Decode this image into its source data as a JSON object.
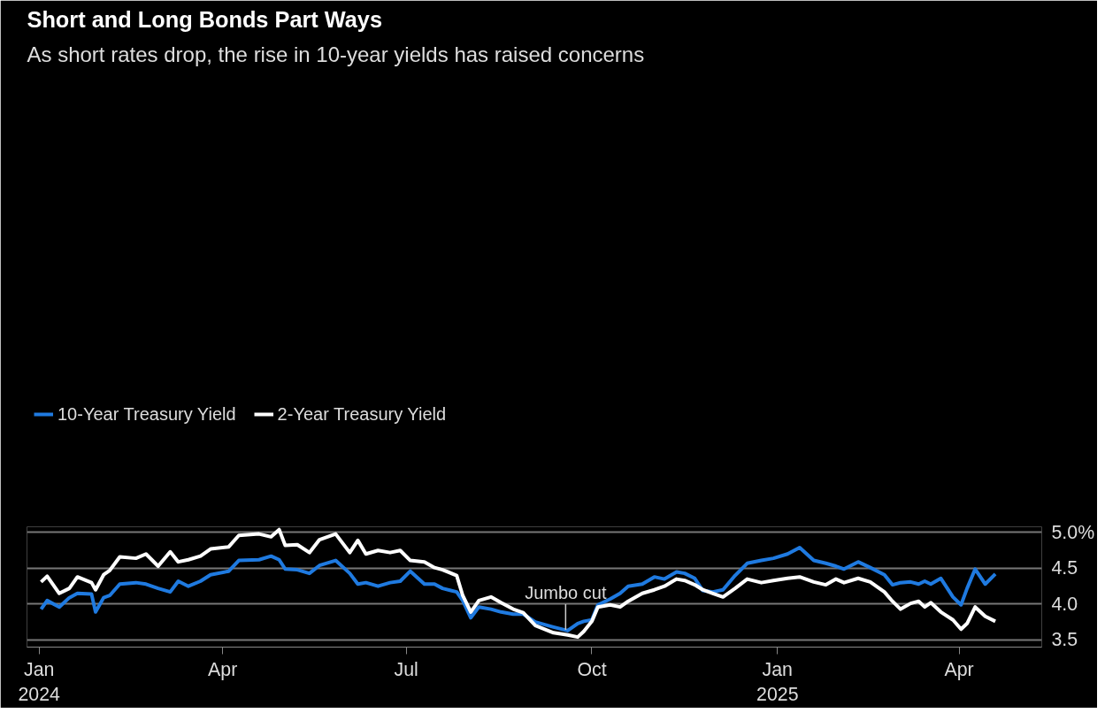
{
  "chart_data": {
    "type": "line",
    "title": "Short and Long Bonds Part Ways",
    "subtitle": "As short rates drop, the rise in 10-year yields has raised concerns",
    "x": [
      "2024-01-02",
      "2024-01-05",
      "2024-01-11",
      "2024-01-16",
      "2024-01-20",
      "2024-01-27",
      "2024-01-29",
      "2024-02-02",
      "2024-02-05",
      "2024-02-10",
      "2024-02-18",
      "2024-02-23",
      "2024-02-29",
      "2024-03-06",
      "2024-03-10",
      "2024-03-15",
      "2024-03-21",
      "2024-03-26",
      "2024-04-04",
      "2024-04-09",
      "2024-04-19",
      "2024-04-25",
      "2024-04-29",
      "2024-05-02",
      "2024-05-08",
      "2024-05-14",
      "2024-05-19",
      "2024-05-27",
      "2024-06-03",
      "2024-06-07",
      "2024-06-11",
      "2024-06-17",
      "2024-06-23",
      "2024-06-28",
      "2024-07-03",
      "2024-07-10",
      "2024-07-15",
      "2024-07-19",
      "2024-07-26",
      "2024-07-29",
      "2024-08-02",
      "2024-08-06",
      "2024-08-12",
      "2024-08-17",
      "2024-08-23",
      "2024-08-28",
      "2024-09-03",
      "2024-09-12",
      "2024-09-19",
      "2024-09-24",
      "2024-09-27",
      "2024-10-01",
      "2024-10-04",
      "2024-10-10",
      "2024-10-15",
      "2024-10-19",
      "2024-10-26",
      "2024-11-01",
      "2024-11-06",
      "2024-11-12",
      "2024-11-16",
      "2024-11-21",
      "2024-11-25",
      "2024-11-30",
      "2024-12-05",
      "2024-12-11",
      "2024-12-17",
      "2024-12-24",
      "2024-12-30",
      "2025-01-06",
      "2025-01-12",
      "2025-01-19",
      "2025-01-25",
      "2025-01-30",
      "2025-02-03",
      "2025-02-10",
      "2025-02-16",
      "2025-02-23",
      "2025-02-27",
      "2025-03-03",
      "2025-03-08",
      "2025-03-12",
      "2025-03-15",
      "2025-03-18",
      "2025-03-23",
      "2025-03-29",
      "2025-04-02",
      "2025-04-05",
      "2025-04-09",
      "2025-04-14",
      "2025-04-19"
    ],
    "series": [
      {
        "name": "10-Year Treasury Yield",
        "color": "#1f7ae0",
        "values": [
          3.93,
          4.05,
          3.96,
          4.09,
          4.15,
          4.14,
          3.89,
          4.09,
          4.12,
          4.28,
          4.3,
          4.28,
          4.22,
          4.17,
          4.32,
          4.25,
          4.32,
          4.41,
          4.46,
          4.61,
          4.62,
          4.67,
          4.62,
          4.49,
          4.48,
          4.43,
          4.54,
          4.61,
          4.43,
          4.28,
          4.3,
          4.25,
          4.3,
          4.32,
          4.46,
          4.28,
          4.28,
          4.22,
          4.17,
          4.05,
          3.81,
          3.96,
          3.93,
          3.89,
          3.86,
          3.86,
          3.75,
          3.68,
          3.63,
          3.73,
          3.76,
          3.78,
          3.99,
          4.07,
          4.15,
          4.25,
          4.28,
          4.38,
          4.35,
          4.45,
          4.43,
          4.36,
          4.19,
          4.17,
          4.2,
          4.4,
          4.57,
          4.61,
          4.64,
          4.7,
          4.79,
          4.61,
          4.57,
          4.53,
          4.49,
          4.59,
          4.51,
          4.41,
          4.27,
          4.3,
          4.31,
          4.28,
          4.32,
          4.28,
          4.36,
          4.1,
          3.99,
          4.22,
          4.49,
          4.28,
          4.42
        ]
      },
      {
        "name": "2-Year Treasury Yield",
        "color": "#ffffff",
        "values": [
          4.31,
          4.39,
          4.15,
          4.22,
          4.38,
          4.3,
          4.2,
          4.41,
          4.47,
          4.66,
          4.64,
          4.7,
          4.53,
          4.73,
          4.59,
          4.62,
          4.67,
          4.77,
          4.8,
          4.96,
          4.98,
          4.94,
          5.04,
          4.82,
          4.83,
          4.72,
          4.9,
          4.98,
          4.72,
          4.89,
          4.7,
          4.75,
          4.72,
          4.75,
          4.61,
          4.59,
          4.51,
          4.48,
          4.4,
          4.12,
          3.89,
          4.05,
          4.1,
          4.02,
          3.93,
          3.88,
          3.7,
          3.6,
          3.57,
          3.54,
          3.62,
          3.76,
          3.96,
          3.99,
          3.96,
          4.04,
          4.15,
          4.2,
          4.25,
          4.35,
          4.33,
          4.27,
          4.2,
          4.15,
          4.1,
          4.22,
          4.35,
          4.3,
          4.33,
          4.36,
          4.38,
          4.31,
          4.27,
          4.35,
          4.3,
          4.36,
          4.31,
          4.17,
          4.04,
          3.93,
          4.01,
          4.04,
          3.96,
          4.02,
          3.89,
          3.78,
          3.65,
          3.73,
          3.96,
          3.83,
          3.76
        ]
      }
    ],
    "xlim": [
      "2023-12-26",
      "2025-05-12"
    ],
    "xticks": [
      {
        "value": "2024-01-01",
        "label": "Jan\n2024"
      },
      {
        "value": "2024-04-01",
        "label": "Apr"
      },
      {
        "value": "2024-07-01",
        "label": "Jul"
      },
      {
        "value": "2024-10-01",
        "label": "Oct"
      },
      {
        "value": "2025-01-01",
        "label": "Jan\n2025"
      },
      {
        "value": "2025-04-01",
        "label": "Apr"
      }
    ],
    "ylim": [
      3.4,
      5.08
    ],
    "yticks": [
      3.5,
      {
        "value": 4.0,
        "label": "4.0"
      },
      4.5,
      {
        "value": 5.0,
        "label": "5.0%"
      }
    ],
    "annotations": [
      {
        "text": "Jumbo cut",
        "x": "2024-09-18",
        "y": 3.64
      }
    ],
    "grid": "y",
    "legend": "top left",
    "line_style": "solid"
  }
}
